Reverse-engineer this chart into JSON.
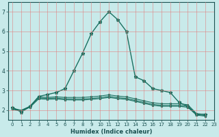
{
  "xlabel": "Humidex (Indice chaleur)",
  "bg_color": "#c8eaea",
  "grid_color": "#e08080",
  "line_color": "#1a7060",
  "xlim": [
    -0.5,
    23
  ],
  "ylim": [
    1.5,
    7.5
  ],
  "yticks": [
    2,
    3,
    4,
    5,
    6,
    7
  ],
  "xticks": [
    0,
    1,
    2,
    3,
    4,
    5,
    6,
    7,
    8,
    9,
    10,
    11,
    12,
    13,
    14,
    15,
    16,
    17,
    18,
    19,
    20,
    21,
    22,
    23
  ],
  "xlabel_fontsize": 6.0,
  "tick_fontsize": 5.0,
  "series": [
    {
      "x": [
        0,
        1,
        2,
        3,
        4,
        5,
        6,
        7,
        8,
        9,
        10,
        11,
        12,
        13,
        14,
        15,
        16,
        17,
        18,
        19,
        20,
        21,
        22
      ],
      "y": [
        2.15,
        1.9,
        2.2,
        2.7,
        2.8,
        2.9,
        3.1,
        4.0,
        4.9,
        5.9,
        6.5,
        7.0,
        6.6,
        6.0,
        3.7,
        3.5,
        3.1,
        3.0,
        2.9,
        2.4,
        2.2,
        1.8,
        1.8
      ],
      "lw": 1.0,
      "ms": 3.5
    },
    {
      "x": [
        0,
        1,
        2,
        3,
        4,
        5,
        6,
        7,
        8,
        9,
        10,
        11,
        12,
        13,
        14,
        15,
        16,
        17,
        18,
        19,
        20,
        21,
        22
      ],
      "y": [
        2.1,
        2.0,
        2.2,
        2.68,
        2.65,
        2.68,
        2.65,
        2.65,
        2.65,
        2.68,
        2.72,
        2.78,
        2.72,
        2.68,
        2.58,
        2.48,
        2.38,
        2.33,
        2.33,
        2.33,
        2.28,
        1.83,
        1.78
      ],
      "lw": 0.8,
      "ms": 2.0
    },
    {
      "x": [
        0,
        1,
        2,
        3,
        4,
        5,
        6,
        7,
        8,
        9,
        10,
        11,
        12,
        13,
        14,
        15,
        16,
        17,
        18,
        19,
        20,
        21,
        22
      ],
      "y": [
        2.08,
        1.98,
        2.18,
        2.63,
        2.6,
        2.62,
        2.58,
        2.57,
        2.57,
        2.6,
        2.64,
        2.7,
        2.64,
        2.6,
        2.5,
        2.4,
        2.3,
        2.25,
        2.25,
        2.25,
        2.2,
        1.78,
        1.73
      ],
      "lw": 0.8,
      "ms": 2.0
    },
    {
      "x": [
        0,
        1,
        2,
        3,
        4,
        5,
        6,
        7,
        8,
        9,
        10,
        11,
        12,
        13,
        14,
        15,
        16,
        17,
        18,
        19,
        20,
        21,
        22
      ],
      "y": [
        2.05,
        1.95,
        2.15,
        2.58,
        2.55,
        2.57,
        2.53,
        2.52,
        2.52,
        2.55,
        2.59,
        2.65,
        2.59,
        2.55,
        2.45,
        2.35,
        2.25,
        2.2,
        2.2,
        2.2,
        2.15,
        1.75,
        1.7
      ],
      "lw": 0.8,
      "ms": 2.0
    }
  ]
}
